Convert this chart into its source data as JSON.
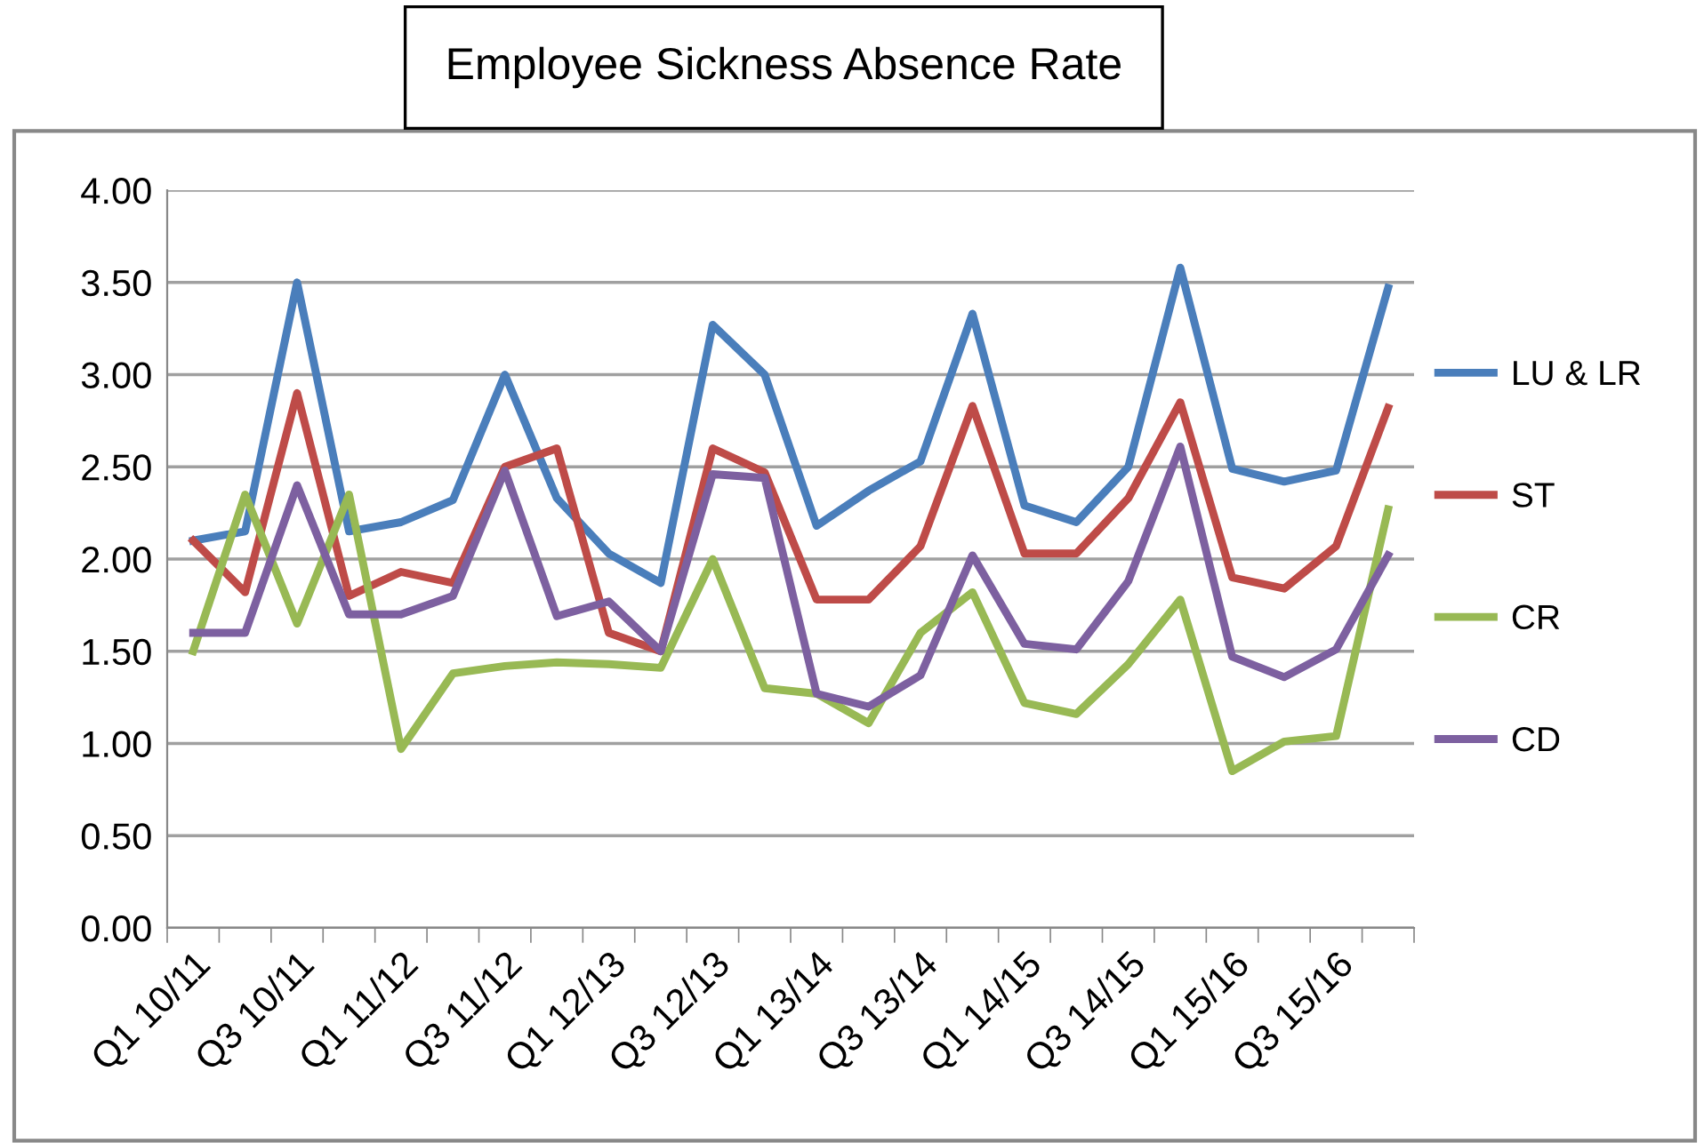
{
  "chart_data": {
    "type": "line",
    "title": "Employee Sickness Absence Rate",
    "categories": [
      "Q1 10/11",
      null,
      "Q3 10/11",
      null,
      "Q1 11/12",
      null,
      "Q3 11/12",
      null,
      "Q1 12/13",
      null,
      "Q3 12/13",
      null,
      "Q1 13/14",
      null,
      "Q3 13/14",
      null,
      "Q1 14/15",
      null,
      "Q3 14/15",
      null,
      "Q1 15/16",
      null,
      "Q3 15/16",
      null
    ],
    "series": [
      {
        "name": "LU & LR",
        "color": "#4a7ebb",
        "values": [
          2.1,
          2.15,
          3.5,
          2.15,
          2.2,
          2.32,
          3.0,
          2.33,
          2.03,
          1.87,
          3.27,
          3.0,
          2.18,
          2.37,
          2.53,
          3.33,
          2.29,
          2.2,
          2.5,
          3.58,
          2.49,
          2.42,
          2.48,
          3.47
        ]
      },
      {
        "name": "ST",
        "color": "#be4b48",
        "values": [
          2.1,
          1.82,
          2.9,
          1.8,
          1.93,
          1.87,
          2.5,
          2.6,
          1.6,
          1.5,
          2.6,
          2.47,
          1.78,
          1.78,
          2.07,
          2.83,
          2.03,
          2.03,
          2.33,
          2.85,
          1.9,
          1.84,
          2.07,
          2.82
        ]
      },
      {
        "name": "CR",
        "color": "#98b954",
        "values": [
          1.5,
          2.35,
          1.65,
          2.35,
          0.97,
          1.38,
          1.42,
          1.44,
          1.43,
          1.41,
          2.0,
          1.3,
          1.27,
          1.11,
          1.6,
          1.82,
          1.22,
          1.16,
          1.43,
          1.78,
          0.85,
          1.01,
          1.04,
          2.27
        ]
      },
      {
        "name": "CD",
        "color": "#7d60a0",
        "values": [
          1.6,
          1.6,
          2.4,
          1.7,
          1.7,
          1.8,
          2.48,
          1.69,
          1.77,
          1.5,
          2.46,
          2.44,
          1.27,
          1.2,
          1.37,
          2.02,
          1.54,
          1.51,
          1.88,
          2.61,
          1.47,
          1.36,
          1.51,
          2.02
        ]
      }
    ],
    "ylim": [
      0,
      4
    ],
    "yticks": [
      {
        "value": 0,
        "label": "0.00"
      },
      {
        "value": 0.5,
        "label": "0.50"
      },
      {
        "value": 1,
        "label": "1.00"
      },
      {
        "value": 1.5,
        "label": "1.50"
      },
      {
        "value": 2,
        "label": "2.00"
      },
      {
        "value": 2.5,
        "label": "2.50"
      },
      {
        "value": 3,
        "label": "3.00"
      },
      {
        "value": 3.5,
        "label": "3.50"
      },
      {
        "value": 4,
        "label": "4.00"
      }
    ],
    "grid": "y",
    "legend": "right",
    "marker": "none",
    "line_style": "solid"
  }
}
